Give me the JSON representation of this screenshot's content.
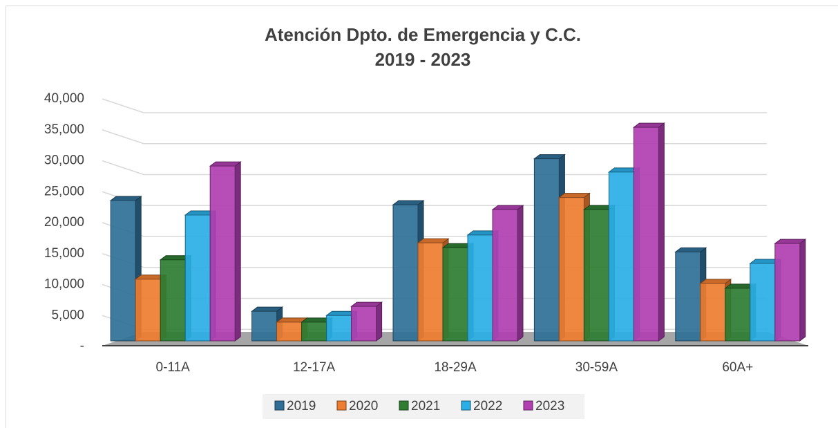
{
  "chart_data": {
    "type": "bar3d",
    "title": "Atención Dpto. de Emergencia y C.C.",
    "subtitle": "2019 - 2023",
    "categories": [
      "0-11A",
      "12-17A",
      "18-29A",
      "30-59A",
      "60A+"
    ],
    "series": [
      {
        "name": "2019",
        "color": "#2f6f97",
        "values": [
          23200,
          4900,
          22500,
          30100,
          14700
        ]
      },
      {
        "name": "2020",
        "color": "#ee7d31",
        "values": [
          10200,
          3100,
          16200,
          23700,
          9500
        ]
      },
      {
        "name": "2021",
        "color": "#2e7d32",
        "values": [
          13400,
          3100,
          15400,
          21700,
          8700
        ]
      },
      {
        "name": "2022",
        "color": "#2aaee6",
        "values": [
          20800,
          4200,
          17500,
          27900,
          12800
        ]
      },
      {
        "name": "2023",
        "color": "#b13fb1",
        "values": [
          28900,
          5700,
          21700,
          35300,
          16100
        ]
      }
    ],
    "ylim": [
      0,
      40000
    ],
    "yticks": [
      {
        "value": 0,
        "label": "-"
      },
      {
        "value": 5000,
        "label": "5,000"
      },
      {
        "value": 10000,
        "label": "10,000"
      },
      {
        "value": 15000,
        "label": "15,000"
      },
      {
        "value": 20000,
        "label": "20,000"
      },
      {
        "value": 25000,
        "label": "25,000"
      },
      {
        "value": 30000,
        "label": "30,000"
      },
      {
        "value": 35000,
        "label": "35,000"
      },
      {
        "value": 40000,
        "label": "40,000"
      }
    ],
    "grid": true,
    "legend": "bottom"
  }
}
